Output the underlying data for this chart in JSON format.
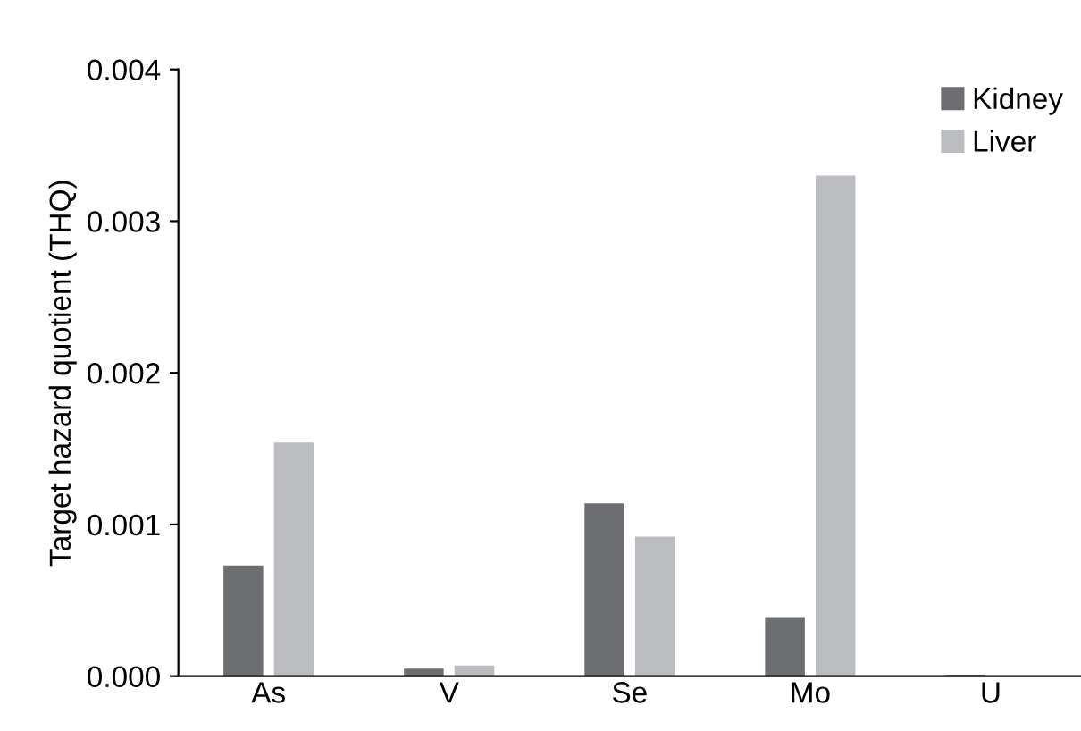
{
  "chart_data": {
    "type": "bar",
    "ylabel": "Target hazard quotient (THQ)",
    "categories": [
      "As",
      "V",
      "Se",
      "Mo",
      "U"
    ],
    "series": [
      {
        "name": "Kidney",
        "color": "#6d6e72",
        "values": [
          0.00073,
          5e-05,
          0.00114,
          0.00039,
          1e-05
        ]
      },
      {
        "name": "Liver",
        "color": "#bcbdc1",
        "values": [
          0.00154,
          7e-05,
          0.00092,
          0.0033,
          0.0
        ]
      }
    ],
    "ylim": [
      0,
      0.004
    ],
    "yticks": [
      {
        "value": 0,
        "label": "0.000"
      },
      {
        "value": 0.001,
        "label": "0.001"
      },
      {
        "value": 0.002,
        "label": "0.002"
      },
      {
        "value": 0.003,
        "label": "0.003"
      },
      {
        "value": 0.004,
        "label": "0.004"
      }
    ],
    "grid": false,
    "legend": "top right"
  }
}
